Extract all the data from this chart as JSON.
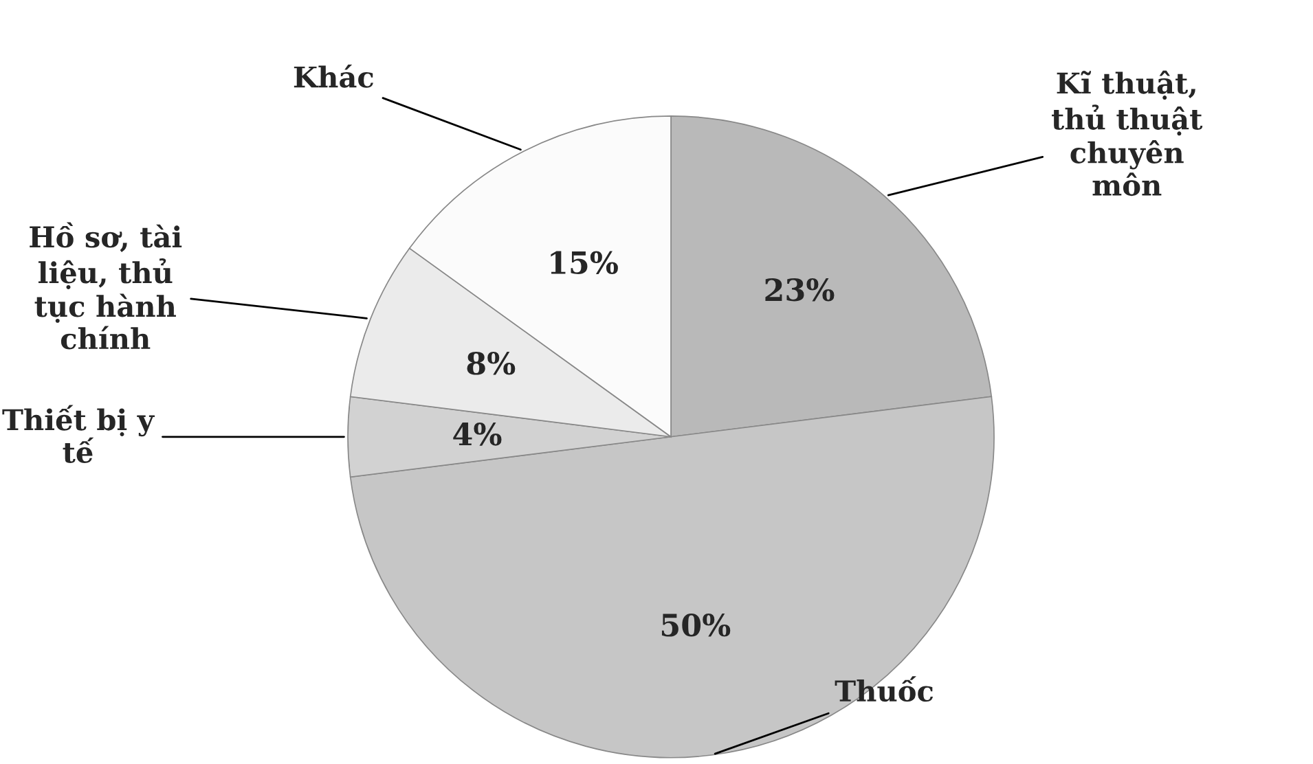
{
  "chart_data": {
    "type": "pie",
    "categories": [
      "Kĩ thuật,\nthủ thuật\nchuyên\nmôn",
      "Thuốc",
      "Thiết bị y\ntế",
      "Hồ sơ, tài\nliệu, thủ\ntục hành\nchính",
      "Khác"
    ],
    "values": [
      23,
      50,
      4,
      8,
      15
    ],
    "value_labels": [
      "23%",
      "50%",
      "4%",
      "8%",
      "15%"
    ],
    "colors": [
      "#b9b9b9",
      "#c6c6c6",
      "#d2d2d2",
      "#ebebeb",
      "#fbfbfb"
    ]
  }
}
